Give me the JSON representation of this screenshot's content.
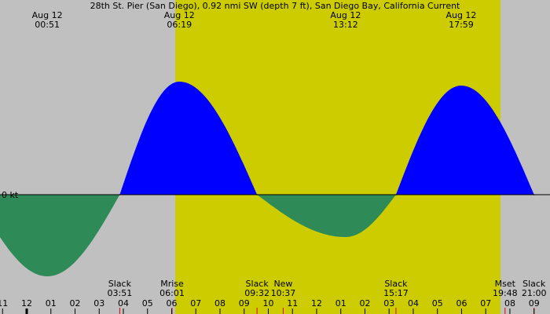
{
  "chart_data": {
    "type": "area",
    "title": "28th St. Pier (San Diego), 0.92 nmi SW (depth 7 ft), San Diego Bay, California Current",
    "date": "Aug 12",
    "slack_label": "Slack",
    "x": [
      "00:51",
      "03:51",
      "06:19",
      "09:32",
      "13:12",
      "15:17",
      "17:59",
      "21:00"
    ],
    "values": [
      -1.04,
      0,
      1.44,
      0,
      -0.54,
      0,
      1.39,
      0
    ],
    "events": [
      {
        "name": "Mrise",
        "time": "06:01"
      },
      {
        "name": "New",
        "time": "10:37"
      },
      {
        "name": "Mset",
        "time": "19:48"
      }
    ],
    "xlim": [
      -1.106,
      21.66
    ],
    "xticks": [
      {
        "value": -1,
        "label": "11"
      },
      {
        "value": 0,
        "label": "12"
      },
      {
        "value": 1,
        "label": "01"
      },
      {
        "value": 2,
        "label": "02"
      },
      {
        "value": 3,
        "label": "03"
      },
      {
        "value": 4,
        "label": "04"
      },
      {
        "value": 5,
        "label": "05"
      },
      {
        "value": 6,
        "label": "06"
      },
      {
        "value": 7,
        "label": "07"
      },
      {
        "value": 8,
        "label": "08"
      },
      {
        "value": 9,
        "label": "09"
      },
      {
        "value": 10,
        "label": "10"
      },
      {
        "value": 11,
        "label": "11"
      },
      {
        "value": 12,
        "label": "12"
      },
      {
        "value": 13,
        "label": "01"
      },
      {
        "value": 14,
        "label": "02"
      },
      {
        "value": 15,
        "label": "03"
      },
      {
        "value": 16,
        "label": "04"
      },
      {
        "value": 17,
        "label": "05"
      },
      {
        "value": 18,
        "label": "06"
      },
      {
        "value": 19,
        "label": "07"
      },
      {
        "value": 20,
        "label": "08"
      },
      {
        "value": 21,
        "label": "09"
      }
    ],
    "ylim": [
      -1.52,
      2.48
    ],
    "yticks": [
      {
        "value": 0,
        "label": "0 kt"
      }
    ],
    "daylight": [
      6.15,
      19.61
    ],
    "colors": {
      "flood": "#0000ff",
      "ebb": "#2e8b57",
      "day": "#cccc00",
      "night": "#c0c0c0"
    }
  }
}
